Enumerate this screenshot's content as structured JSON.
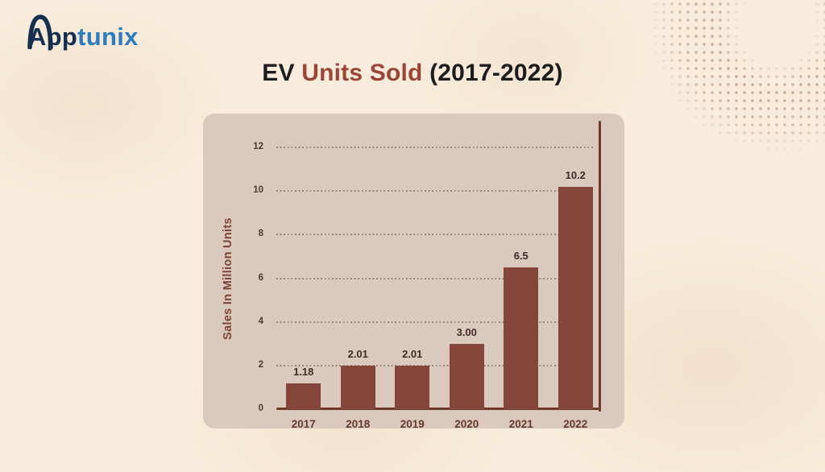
{
  "page": {
    "background_color": "#f9ecdc"
  },
  "logo": {
    "text_primary": "App",
    "text_secondary": "tunix",
    "primary_color": "#152f4e",
    "secondary_color": "#2d7cbd"
  },
  "title": {
    "part1": "EV ",
    "part2": "Units Sold",
    "part3": " (2017-2022)",
    "accent_color": "#9a4536"
  },
  "chart_data": {
    "type": "bar",
    "title": "EV Units Sold (2017-2022)",
    "xlabel": "",
    "ylabel": "Sales In Million Units",
    "categories": [
      "2017",
      "2018",
      "2019",
      "2020",
      "2021",
      "2022"
    ],
    "values": [
      1.18,
      2.01,
      2.01,
      3.0,
      6.5,
      10.2
    ],
    "value_labels": [
      "1.18",
      "2.01",
      "2.01",
      "3.00",
      "6.5",
      "10.2"
    ],
    "yticks": [
      0,
      2,
      4,
      6,
      8,
      10,
      12
    ],
    "ylim": [
      0,
      13
    ],
    "grid": "horizontal-dotted",
    "legend": "none",
    "bar_color": "#84453a",
    "axis_color": "#6e392b",
    "panel_color": "#dbc9bd",
    "grid_color": "#685349",
    "tick_label_color": "#4a3a32",
    "value_label_color": "#3f2b24",
    "category_label_color": "#64392e",
    "ylabel_color": "#7c4336"
  }
}
